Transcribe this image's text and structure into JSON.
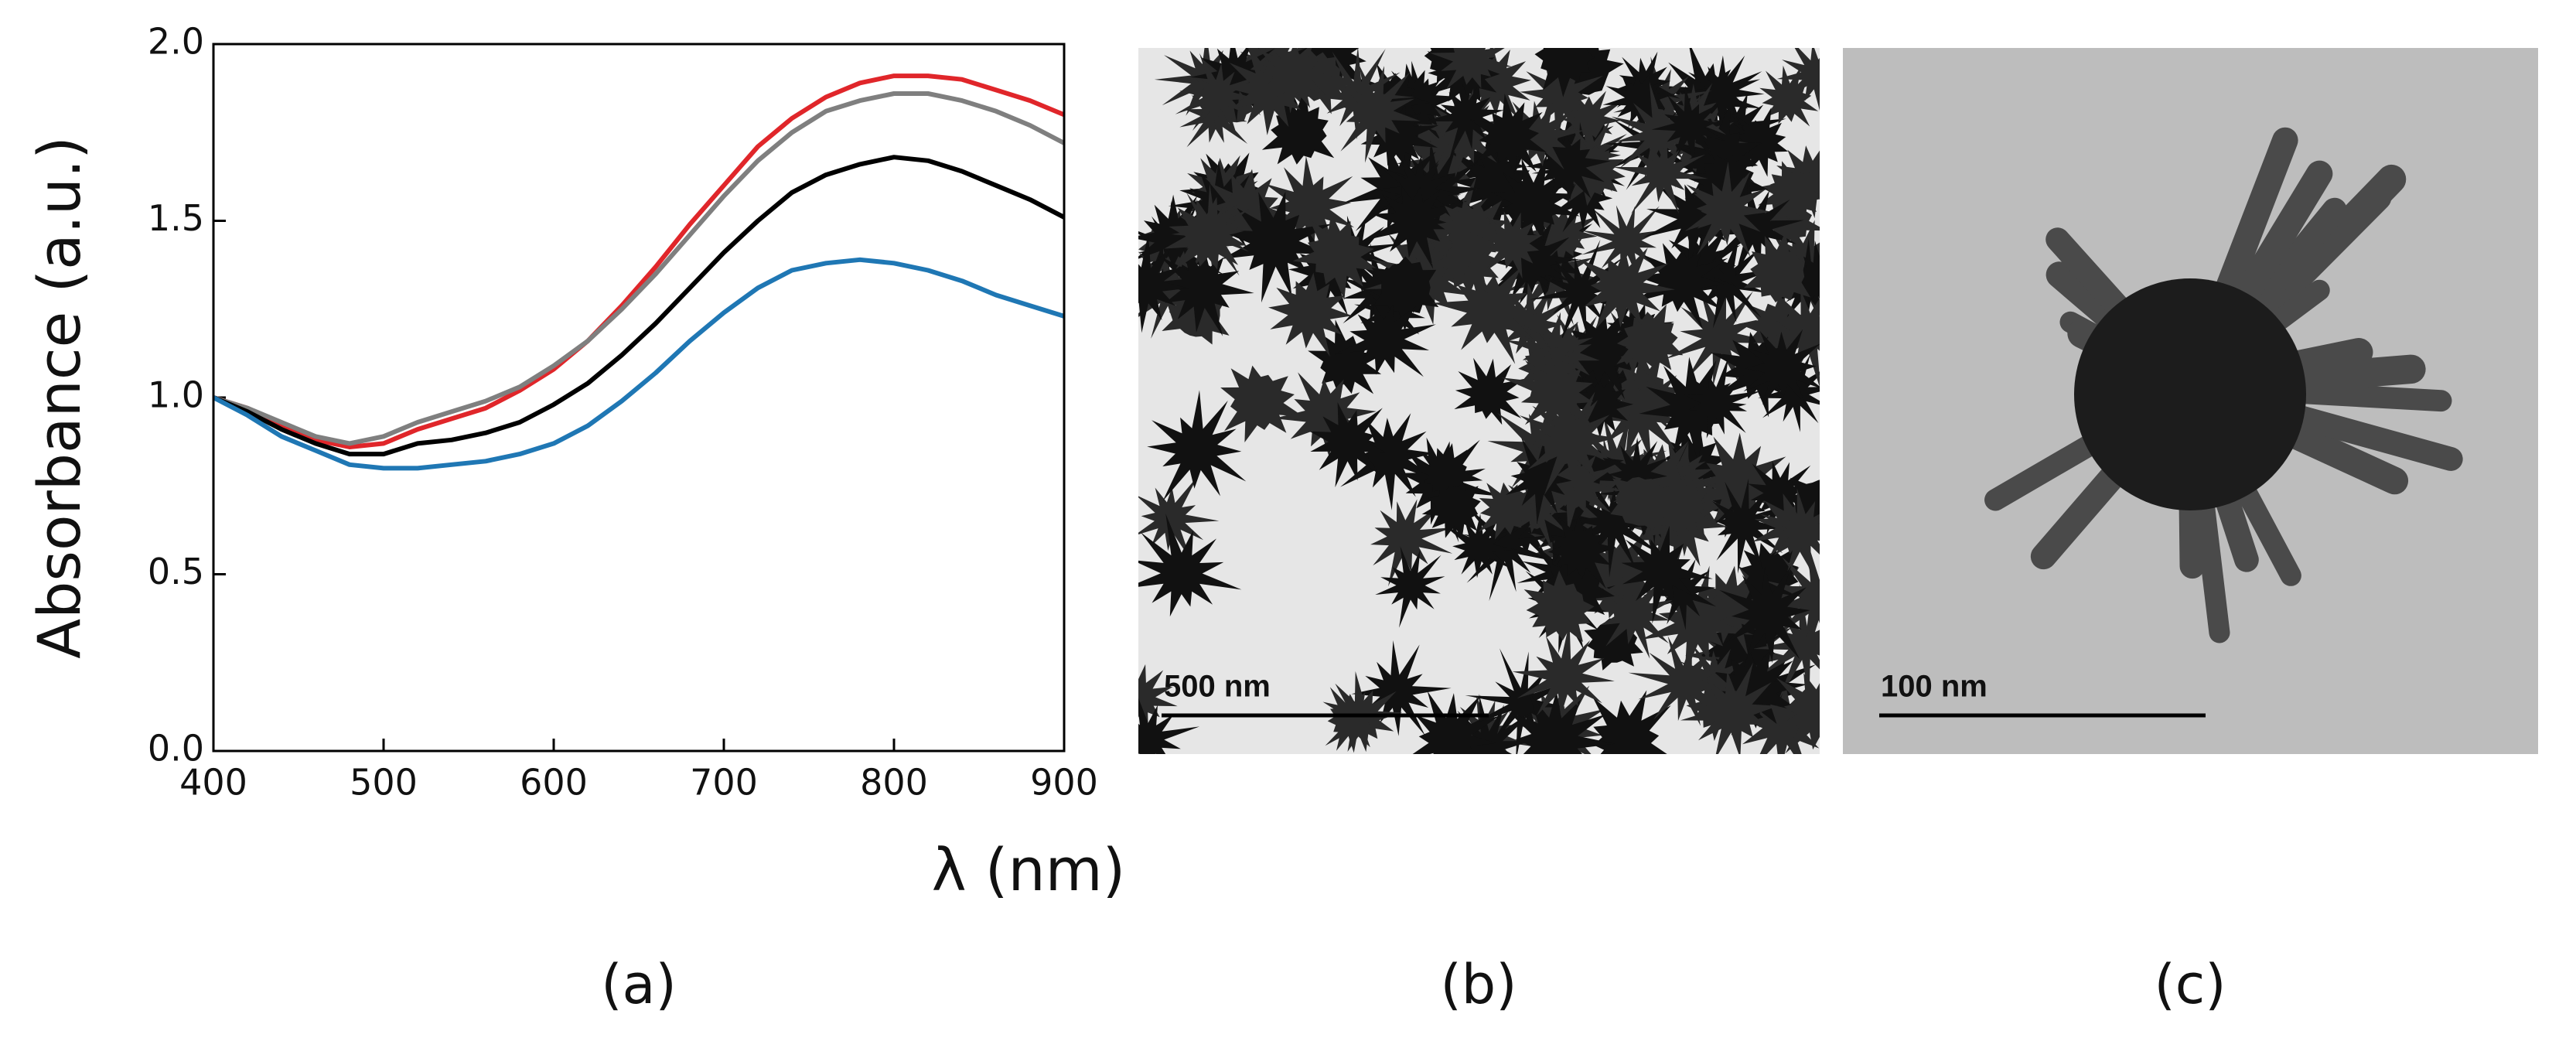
{
  "chart_data": {
    "type": "line",
    "xlabel": "λ (nm)",
    "ylabel": "Absorbance (a.u.)",
    "x": [
      400,
      420,
      440,
      460,
      480,
      500,
      520,
      540,
      560,
      580,
      600,
      620,
      640,
      660,
      680,
      700,
      720,
      740,
      760,
      780,
      800,
      820,
      840,
      860,
      880,
      900
    ],
    "series": [
      {
        "color": "#e0262a",
        "values": [
          1.0,
          0.97,
          0.92,
          0.88,
          0.86,
          0.87,
          0.91,
          0.94,
          0.97,
          1.02,
          1.08,
          1.16,
          1.26,
          1.37,
          1.49,
          1.6,
          1.71,
          1.79,
          1.85,
          1.89,
          1.91,
          1.91,
          1.9,
          1.87,
          1.84,
          1.8
        ]
      },
      {
        "color": "#7f7f7f",
        "values": [
          1.0,
          0.97,
          0.93,
          0.89,
          0.87,
          0.89,
          0.93,
          0.96,
          0.99,
          1.03,
          1.09,
          1.16,
          1.25,
          1.35,
          1.46,
          1.57,
          1.67,
          1.75,
          1.81,
          1.84,
          1.86,
          1.86,
          1.84,
          1.81,
          1.77,
          1.72
        ]
      },
      {
        "color": "#000000",
        "values": [
          1.0,
          0.96,
          0.91,
          0.87,
          0.84,
          0.84,
          0.87,
          0.88,
          0.9,
          0.93,
          0.98,
          1.04,
          1.12,
          1.21,
          1.31,
          1.41,
          1.5,
          1.58,
          1.63,
          1.66,
          1.68,
          1.67,
          1.64,
          1.6,
          1.56,
          1.51
        ]
      },
      {
        "color": "#1f77b4",
        "values": [
          1.0,
          0.95,
          0.89,
          0.85,
          0.81,
          0.8,
          0.8,
          0.81,
          0.82,
          0.84,
          0.87,
          0.92,
          0.99,
          1.07,
          1.16,
          1.24,
          1.31,
          1.36,
          1.38,
          1.39,
          1.38,
          1.36,
          1.33,
          1.29,
          1.26,
          1.23
        ]
      }
    ],
    "xlim": [
      400,
      900
    ],
    "xticks": [
      400,
      500,
      600,
      700,
      800,
      900
    ],
    "ylim": [
      0,
      2.0
    ],
    "yticks": [
      {
        "value": 0,
        "label": "0.0"
      },
      0.5,
      {
        "value": 1,
        "label": "1.0"
      },
      1.5,
      {
        "value": 2,
        "label": "2.0"
      }
    ]
  },
  "panel_labels": [
    "(a)",
    "(b)",
    "(c)"
  ],
  "images": [
    {
      "scale_bar": "500 nm"
    },
    {
      "scale_bar": "100 nm"
    }
  ]
}
